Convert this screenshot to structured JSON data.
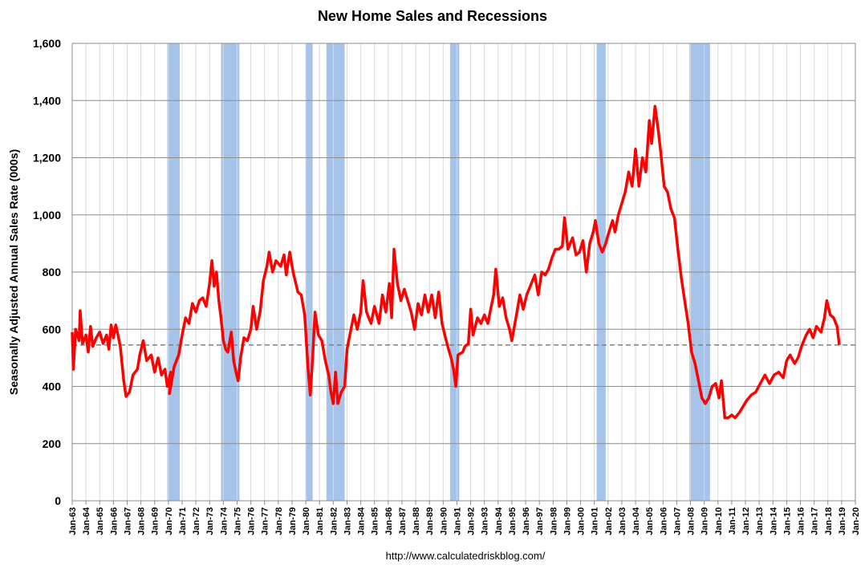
{
  "chart_data": {
    "type": "line",
    "title": "New Home Sales and Recessions",
    "ylabel": "Seasonally Adjusted Annual Sales Rate (000s)",
    "source": "http://www.calculatedriskblog.com/",
    "ylim": [
      0,
      1600
    ],
    "yticks": [
      "0",
      "200",
      "400",
      "600",
      "800",
      "1,000",
      "1,200",
      "1,400",
      "1,600"
    ],
    "xticks": [
      "Jan-63",
      "Jan-64",
      "Jan-65",
      "Jan-66",
      "Jan-67",
      "Jan-68",
      "Jan-69",
      "Jan-70",
      "Jan-71",
      "Jan-72",
      "Jan-73",
      "Jan-74",
      "Jan-75",
      "Jan-76",
      "Jan-77",
      "Jan-78",
      "Jan-79",
      "Jan-80",
      "Jan-81",
      "Jan-82",
      "Jan-83",
      "Jan-84",
      "Jan-85",
      "Jan-86",
      "Jan-87",
      "Jan-88",
      "Jan-89",
      "Jan-90",
      "Jan-91",
      "Jan-92",
      "Jan-93",
      "Jan-94",
      "Jan-95",
      "Jan-96",
      "Jan-97",
      "Jan-98",
      "Jan-99",
      "Jan-00",
      "Jan-01",
      "Jan-02",
      "Jan-03",
      "Jan-04",
      "Jan-05",
      "Jan-06",
      "Jan-07",
      "Jan-08",
      "Jan-09",
      "Jan-10",
      "Jan-11",
      "Jan-12",
      "Jan-13",
      "Jan-14",
      "Jan-15",
      "Jan-16",
      "Jan-17",
      "Jan-18",
      "Jan-19",
      "Jan-20"
    ],
    "grid": true,
    "reference_line": 545,
    "recessions": [
      [
        1969.92,
        1970.83
      ],
      [
        1973.83,
        1975.17
      ],
      [
        1980.0,
        1980.5
      ],
      [
        1981.5,
        1982.83
      ],
      [
        1990.5,
        1991.17
      ],
      [
        2001.17,
        2001.83
      ],
      [
        2007.92,
        2009.42
      ]
    ],
    "series": [
      {
        "color": "#ff0000",
        "points": [
          [
            1963.0,
            590
          ],
          [
            1963.08,
            460
          ],
          [
            1963.25,
            600
          ],
          [
            1963.5,
            560
          ],
          [
            1963.58,
            665
          ],
          [
            1963.75,
            550
          ],
          [
            1964.0,
            580
          ],
          [
            1964.17,
            520
          ],
          [
            1964.33,
            610
          ],
          [
            1964.5,
            540
          ],
          [
            1964.75,
            570
          ],
          [
            1965.0,
            590
          ],
          [
            1965.25,
            550
          ],
          [
            1965.5,
            580
          ],
          [
            1965.67,
            530
          ],
          [
            1965.83,
            615
          ],
          [
            1966.0,
            570
          ],
          [
            1966.17,
            615
          ],
          [
            1966.33,
            580
          ],
          [
            1966.5,
            540
          ],
          [
            1966.75,
            420
          ],
          [
            1966.92,
            365
          ],
          [
            1967.17,
            380
          ],
          [
            1967.42,
            440
          ],
          [
            1967.75,
            460
          ],
          [
            1967.92,
            510
          ],
          [
            1968.17,
            560
          ],
          [
            1968.42,
            490
          ],
          [
            1968.75,
            510
          ],
          [
            1969.0,
            450
          ],
          [
            1969.25,
            500
          ],
          [
            1969.5,
            440
          ],
          [
            1969.75,
            460
          ],
          [
            1969.92,
            400
          ],
          [
            1970.17,
            450
          ],
          [
            1970.08,
            375
          ],
          [
            1970.42,
            470
          ],
          [
            1970.75,
            510
          ],
          [
            1971.0,
            580
          ],
          [
            1971.25,
            640
          ],
          [
            1971.5,
            620
          ],
          [
            1971.75,
            690
          ],
          [
            1972.0,
            660
          ],
          [
            1972.25,
            700
          ],
          [
            1972.5,
            710
          ],
          [
            1972.75,
            680
          ],
          [
            1973.0,
            760
          ],
          [
            1973.17,
            840
          ],
          [
            1973.33,
            750
          ],
          [
            1973.5,
            800
          ],
          [
            1973.67,
            700
          ],
          [
            1973.83,
            640
          ],
          [
            1974.0,
            560
          ],
          [
            1974.17,
            530
          ],
          [
            1974.33,
            520
          ],
          [
            1974.58,
            590
          ],
          [
            1974.75,
            490
          ],
          [
            1974.92,
            450
          ],
          [
            1975.08,
            420
          ],
          [
            1975.25,
            500
          ],
          [
            1975.5,
            570
          ],
          [
            1975.75,
            560
          ],
          [
            1976.0,
            600
          ],
          [
            1976.17,
            680
          ],
          [
            1976.42,
            600
          ],
          [
            1976.67,
            660
          ],
          [
            1976.92,
            770
          ],
          [
            1977.17,
            820
          ],
          [
            1977.33,
            870
          ],
          [
            1977.58,
            800
          ],
          [
            1977.83,
            840
          ],
          [
            1978.17,
            820
          ],
          [
            1978.42,
            860
          ],
          [
            1978.58,
            790
          ],
          [
            1978.83,
            870
          ],
          [
            1979.08,
            800
          ],
          [
            1979.42,
            730
          ],
          [
            1979.67,
            720
          ],
          [
            1979.92,
            650
          ],
          [
            1980.17,
            460
          ],
          [
            1980.33,
            370
          ],
          [
            1980.5,
            500
          ],
          [
            1980.67,
            660
          ],
          [
            1980.92,
            580
          ],
          [
            1981.17,
            560
          ],
          [
            1981.42,
            490
          ],
          [
            1981.67,
            440
          ],
          [
            1981.83,
            380
          ],
          [
            1982.0,
            340
          ],
          [
            1982.17,
            450
          ],
          [
            1982.33,
            340
          ],
          [
            1982.58,
            380
          ],
          [
            1982.83,
            400
          ],
          [
            1983.0,
            530
          ],
          [
            1983.25,
            590
          ],
          [
            1983.5,
            650
          ],
          [
            1983.75,
            600
          ],
          [
            1984.0,
            660
          ],
          [
            1984.17,
            770
          ],
          [
            1984.42,
            660
          ],
          [
            1984.75,
            620
          ],
          [
            1985.0,
            680
          ],
          [
            1985.33,
            620
          ],
          [
            1985.58,
            720
          ],
          [
            1985.83,
            660
          ],
          [
            1986.08,
            760
          ],
          [
            1986.25,
            640
          ],
          [
            1986.42,
            880
          ],
          [
            1986.67,
            760
          ],
          [
            1986.92,
            700
          ],
          [
            1987.17,
            740
          ],
          [
            1987.42,
            700
          ],
          [
            1987.67,
            660
          ],
          [
            1987.92,
            600
          ],
          [
            1988.17,
            690
          ],
          [
            1988.42,
            650
          ],
          [
            1988.67,
            720
          ],
          [
            1988.92,
            660
          ],
          [
            1989.17,
            720
          ],
          [
            1989.42,
            640
          ],
          [
            1989.67,
            730
          ],
          [
            1989.92,
            620
          ],
          [
            1990.17,
            570
          ],
          [
            1990.33,
            540
          ],
          [
            1990.58,
            500
          ],
          [
            1990.75,
            460
          ],
          [
            1990.92,
            400
          ],
          [
            1991.08,
            510
          ],
          [
            1991.42,
            520
          ],
          [
            1991.58,
            540
          ],
          [
            1991.83,
            550
          ],
          [
            1992.0,
            670
          ],
          [
            1992.17,
            580
          ],
          [
            1992.5,
            640
          ],
          [
            1992.75,
            620
          ],
          [
            1993.0,
            650
          ],
          [
            1993.25,
            620
          ],
          [
            1993.5,
            680
          ],
          [
            1993.67,
            720
          ],
          [
            1993.83,
            810
          ],
          [
            1994.08,
            680
          ],
          [
            1994.33,
            710
          ],
          [
            1994.58,
            640
          ],
          [
            1994.83,
            600
          ],
          [
            1995.0,
            560
          ],
          [
            1995.33,
            650
          ],
          [
            1995.58,
            720
          ],
          [
            1995.83,
            670
          ],
          [
            1996.08,
            720
          ],
          [
            1996.42,
            760
          ],
          [
            1996.67,
            790
          ],
          [
            1996.92,
            720
          ],
          [
            1997.17,
            800
          ],
          [
            1997.42,
            790
          ],
          [
            1997.67,
            810
          ],
          [
            1997.92,
            850
          ],
          [
            1998.17,
            880
          ],
          [
            1998.42,
            880
          ],
          [
            1998.67,
            890
          ],
          [
            1998.83,
            990
          ],
          [
            1999.08,
            880
          ],
          [
            1999.42,
            920
          ],
          [
            1999.67,
            860
          ],
          [
            1999.92,
            870
          ],
          [
            2000.17,
            910
          ],
          [
            2000.42,
            800
          ],
          [
            2000.67,
            900
          ],
          [
            2000.92,
            940
          ],
          [
            2001.08,
            980
          ],
          [
            2001.33,
            900
          ],
          [
            2001.58,
            870
          ],
          [
            2001.83,
            900
          ],
          [
            2002.0,
            930
          ],
          [
            2002.33,
            980
          ],
          [
            2002.5,
            940
          ],
          [
            2002.75,
            1000
          ],
          [
            2003.0,
            1040
          ],
          [
            2003.25,
            1080
          ],
          [
            2003.5,
            1150
          ],
          [
            2003.75,
            1100
          ],
          [
            2004.0,
            1230
          ],
          [
            2004.25,
            1100
          ],
          [
            2004.5,
            1200
          ],
          [
            2004.75,
            1150
          ],
          [
            2005.0,
            1330
          ],
          [
            2005.17,
            1250
          ],
          [
            2005.42,
            1380
          ],
          [
            2005.67,
            1290
          ],
          [
            2005.83,
            1220
          ],
          [
            2006.08,
            1100
          ],
          [
            2006.33,
            1080
          ],
          [
            2006.58,
            1020
          ],
          [
            2006.83,
            990
          ],
          [
            2007.08,
            880
          ],
          [
            2007.33,
            780
          ],
          [
            2007.58,
            700
          ],
          [
            2007.83,
            620
          ],
          [
            2008.08,
            520
          ],
          [
            2008.33,
            480
          ],
          [
            2008.58,
            420
          ],
          [
            2008.83,
            360
          ],
          [
            2009.08,
            340
          ],
          [
            2009.33,
            360
          ],
          [
            2009.58,
            400
          ],
          [
            2009.83,
            410
          ],
          [
            2010.08,
            360
          ],
          [
            2010.25,
            420
          ],
          [
            2010.5,
            290
          ],
          [
            2010.75,
            290
          ],
          [
            2011.0,
            300
          ],
          [
            2011.25,
            290
          ],
          [
            2011.58,
            310
          ],
          [
            2011.83,
            330
          ],
          [
            2012.08,
            350
          ],
          [
            2012.42,
            370
          ],
          [
            2012.75,
            380
          ],
          [
            2013.08,
            410
          ],
          [
            2013.42,
            440
          ],
          [
            2013.75,
            410
          ],
          [
            2014.08,
            440
          ],
          [
            2014.42,
            450
          ],
          [
            2014.75,
            430
          ],
          [
            2015.0,
            490
          ],
          [
            2015.25,
            510
          ],
          [
            2015.58,
            480
          ],
          [
            2015.83,
            500
          ],
          [
            2016.08,
            540
          ],
          [
            2016.42,
            580
          ],
          [
            2016.67,
            600
          ],
          [
            2016.92,
            570
          ],
          [
            2017.17,
            610
          ],
          [
            2017.5,
            590
          ],
          [
            2017.75,
            640
          ],
          [
            2017.92,
            700
          ],
          [
            2018.17,
            650
          ],
          [
            2018.42,
            640
          ],
          [
            2018.67,
            610
          ],
          [
            2018.83,
            545
          ]
        ]
      }
    ]
  }
}
